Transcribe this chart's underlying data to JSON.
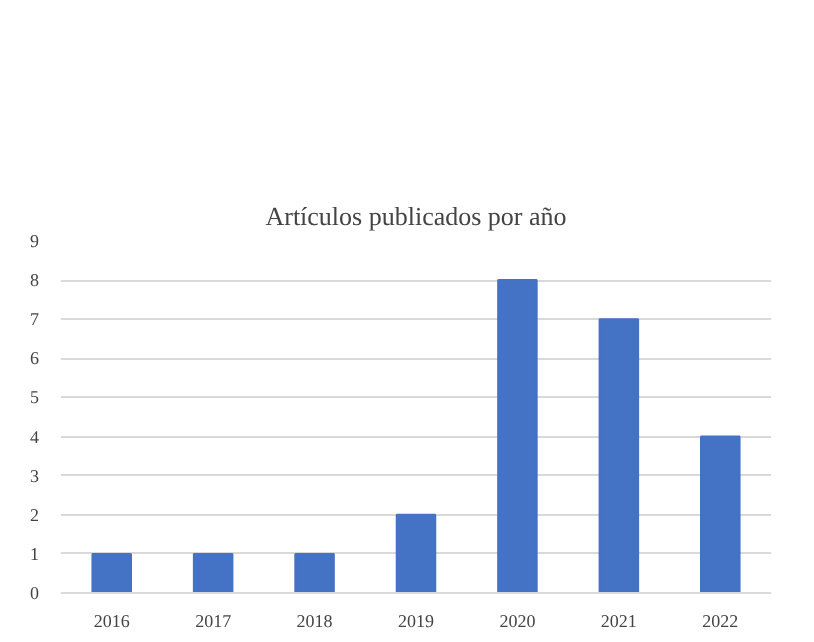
{
  "chart_data": {
    "type": "bar",
    "title": "Artículos publicados por año",
    "categories": [
      "2016",
      "2017",
      "2018",
      "2019",
      "2020",
      "2021",
      "2022"
    ],
    "values": [
      1,
      1,
      1,
      2,
      8,
      7,
      4
    ],
    "color": "#4472c4",
    "ylim": [
      0,
      9
    ],
    "yticks": [
      0,
      1,
      2,
      3,
      4,
      5,
      6,
      7,
      8,
      9
    ],
    "grid": "y"
  }
}
